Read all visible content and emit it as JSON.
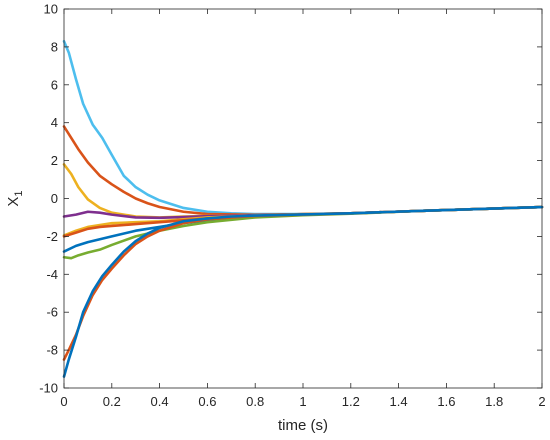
{
  "chart_data": {
    "type": "line",
    "xlabel": "time (s)",
    "ylabel": "X",
    "ylabel_subscript": "1",
    "xlim": [
      0,
      2
    ],
    "ylim": [
      -10,
      10
    ],
    "xticks": [
      0,
      0.2,
      0.4,
      0.6,
      0.8,
      1,
      1.2,
      1.4,
      1.6,
      1.8,
      2
    ],
    "xtick_labels": [
      "0",
      "0.2",
      "0.4",
      "0.6",
      "0.8",
      "1",
      "1.2",
      "1.4",
      "1.6",
      "1.8",
      "2"
    ],
    "yticks": [
      -10,
      -8,
      -6,
      -4,
      -2,
      0,
      2,
      4,
      6,
      8,
      10
    ],
    "ytick_labels": [
      "-10",
      "-8",
      "-6",
      "-4",
      "-2",
      "0",
      "2",
      "4",
      "6",
      "8",
      "10"
    ],
    "grid": false,
    "series": [
      {
        "color": "#4DBEEE",
        "x": [
          0,
          0.02,
          0.05,
          0.08,
          0.12,
          0.16,
          0.2,
          0.25,
          0.3,
          0.35,
          0.4,
          0.5,
          0.6,
          0.7,
          0.8,
          1.0,
          1.2,
          1.5,
          2.0
        ],
        "y": [
          8.3,
          7.7,
          6.3,
          5.0,
          3.9,
          3.2,
          2.3,
          1.2,
          0.6,
          0.2,
          -0.1,
          -0.5,
          -0.7,
          -0.78,
          -0.82,
          -0.82,
          -0.78,
          -0.65,
          -0.45
        ]
      },
      {
        "color": "#D95319",
        "x": [
          0,
          0.03,
          0.06,
          0.1,
          0.15,
          0.2,
          0.25,
          0.3,
          0.35,
          0.4,
          0.5,
          0.6,
          0.8,
          1.0,
          1.2,
          1.5,
          2.0
        ],
        "y": [
          3.8,
          3.2,
          2.6,
          1.9,
          1.2,
          0.75,
          0.35,
          0.0,
          -0.25,
          -0.45,
          -0.7,
          -0.82,
          -0.86,
          -0.83,
          -0.78,
          -0.65,
          -0.45
        ]
      },
      {
        "color": "#EDB120",
        "x": [
          0,
          0.03,
          0.06,
          0.1,
          0.15,
          0.2,
          0.3,
          0.4,
          0.5,
          0.6,
          0.8,
          1.0,
          1.2,
          1.5,
          2.0
        ],
        "y": [
          1.8,
          1.3,
          0.6,
          -0.05,
          -0.5,
          -0.75,
          -0.95,
          -1.0,
          -0.95,
          -0.92,
          -0.88,
          -0.83,
          -0.78,
          -0.65,
          -0.45
        ]
      },
      {
        "color": "#7E2F8E",
        "x": [
          0,
          0.05,
          0.1,
          0.15,
          0.2,
          0.3,
          0.4,
          0.5,
          0.6,
          0.8,
          1.0,
          1.2,
          1.5,
          2.0
        ],
        "y": [
          -0.95,
          -0.85,
          -0.7,
          -0.75,
          -0.85,
          -1.0,
          -1.02,
          -0.98,
          -0.93,
          -0.88,
          -0.83,
          -0.78,
          -0.65,
          -0.45
        ]
      },
      {
        "color": "#EDB120",
        "x": [
          0,
          0.05,
          0.1,
          0.15,
          0.2,
          0.3,
          0.4,
          0.5,
          0.6,
          0.8,
          1.0,
          1.2,
          1.5,
          2.0
        ],
        "y": [
          -1.95,
          -1.7,
          -1.5,
          -1.4,
          -1.3,
          -1.25,
          -1.2,
          -1.1,
          -1.0,
          -0.9,
          -0.83,
          -0.78,
          -0.65,
          -0.45
        ]
      },
      {
        "color": "#D95319",
        "x": [
          0,
          0.05,
          0.1,
          0.15,
          0.2,
          0.3,
          0.4,
          0.5,
          0.6,
          0.8,
          1.0,
          1.2,
          1.5,
          2.0
        ],
        "y": [
          -2.0,
          -1.8,
          -1.6,
          -1.5,
          -1.45,
          -1.35,
          -1.25,
          -1.15,
          -1.05,
          -0.92,
          -0.84,
          -0.78,
          -0.65,
          -0.45
        ]
      },
      {
        "color": "#0072BD",
        "x": [
          0,
          0.05,
          0.1,
          0.2,
          0.3,
          0.4,
          0.5,
          0.6,
          0.8,
          1.0,
          1.2,
          1.5,
          2.0
        ],
        "y": [
          -2.8,
          -2.5,
          -2.3,
          -2.0,
          -1.7,
          -1.5,
          -1.3,
          -1.15,
          -0.95,
          -0.85,
          -0.78,
          -0.65,
          -0.45
        ]
      },
      {
        "color": "#77AC30",
        "x": [
          0,
          0.03,
          0.06,
          0.1,
          0.15,
          0.2,
          0.3,
          0.4,
          0.5,
          0.6,
          0.8,
          1.0,
          1.2,
          1.5,
          2.0
        ],
        "y": [
          -3.1,
          -3.15,
          -3.0,
          -2.85,
          -2.7,
          -2.45,
          -2.0,
          -1.7,
          -1.45,
          -1.25,
          -1.0,
          -0.88,
          -0.8,
          -0.65,
          -0.45
        ]
      },
      {
        "color": "#D95319",
        "x": [
          0,
          0.02,
          0.05,
          0.08,
          0.12,
          0.16,
          0.2,
          0.25,
          0.3,
          0.35,
          0.4,
          0.5,
          0.6,
          0.7,
          0.8,
          1.0,
          1.2,
          1.5,
          2.0
        ],
        "y": [
          -8.5,
          -8.0,
          -7.2,
          -6.2,
          -5.1,
          -4.3,
          -3.7,
          -3.0,
          -2.4,
          -2.0,
          -1.7,
          -1.3,
          -1.1,
          -1.0,
          -0.92,
          -0.85,
          -0.78,
          -0.65,
          -0.45
        ]
      },
      {
        "color": "#0072BD",
        "x": [
          0,
          0.02,
          0.05,
          0.08,
          0.12,
          0.16,
          0.2,
          0.25,
          0.3,
          0.35,
          0.4,
          0.5,
          0.6,
          0.7,
          0.8,
          1.0,
          1.2,
          1.5,
          2.0
        ],
        "y": [
          -9.4,
          -8.5,
          -7.3,
          -6.0,
          -4.9,
          -4.1,
          -3.5,
          -2.8,
          -2.25,
          -1.85,
          -1.55,
          -1.2,
          -1.05,
          -0.95,
          -0.9,
          -0.84,
          -0.78,
          -0.65,
          -0.45
        ]
      }
    ]
  }
}
